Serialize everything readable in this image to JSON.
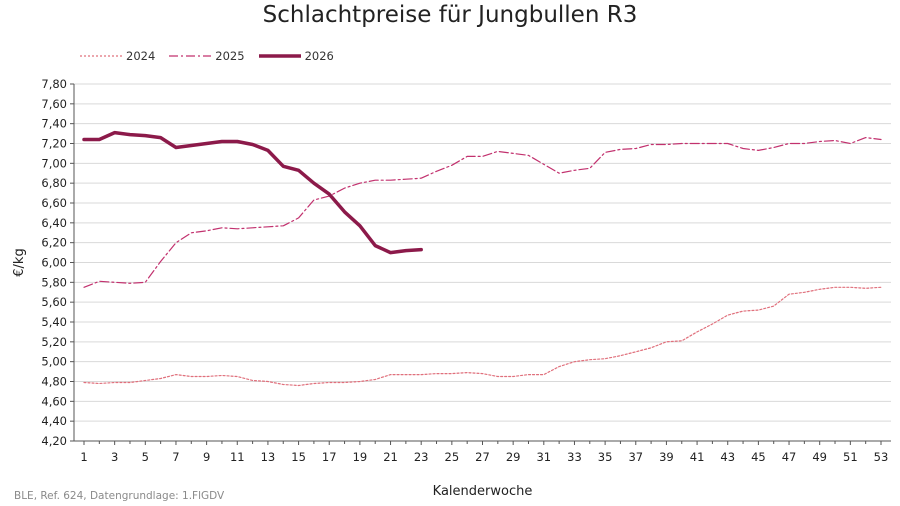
{
  "chart_data": {
    "type": "line",
    "title": "Schlachtpreise für Jungbullen R3",
    "xlabel": "Kalenderwoche",
    "ylabel": "€/kg",
    "xlim": [
      1,
      53
    ],
    "ylim": [
      4.2,
      7.8
    ],
    "yticks": [
      "4,20",
      "4,40",
      "4,60",
      "4,80",
      "5,00",
      "5,20",
      "5,40",
      "5,60",
      "5,80",
      "6,00",
      "6,20",
      "6,40",
      "6,60",
      "6,80",
      "7,00",
      "7,20",
      "7,40",
      "7,60",
      "7,80"
    ],
    "xticks": [
      "1",
      "3",
      "5",
      "7",
      "9",
      "11",
      "13",
      "15",
      "17",
      "19",
      "21",
      "23",
      "25",
      "27",
      "29",
      "31",
      "33",
      "35",
      "37",
      "39",
      "41",
      "43",
      "45",
      "47",
      "49",
      "51",
      "53"
    ],
    "grid": "horizontal",
    "legend_position": "top-left",
    "series": [
      {
        "name": "2024",
        "color": "#e0707c",
        "style": "dotted",
        "x": [
          1,
          2,
          3,
          4,
          5,
          6,
          7,
          8,
          9,
          10,
          11,
          12,
          13,
          14,
          15,
          16,
          17,
          18,
          19,
          20,
          21,
          22,
          23,
          24,
          25,
          26,
          27,
          28,
          29,
          30,
          31,
          32,
          33,
          34,
          35,
          36,
          37,
          38,
          39,
          40,
          41,
          42,
          43,
          44,
          45,
          46,
          47,
          48,
          49,
          50,
          51,
          52,
          53
        ],
        "values": [
          4.79,
          4.78,
          4.79,
          4.79,
          4.81,
          4.83,
          4.87,
          4.85,
          4.85,
          4.86,
          4.85,
          4.81,
          4.8,
          4.77,
          4.76,
          4.78,
          4.79,
          4.79,
          4.8,
          4.82,
          4.87,
          4.87,
          4.87,
          4.88,
          4.88,
          4.89,
          4.88,
          4.85,
          4.85,
          4.87,
          4.87,
          4.95,
          5.0,
          5.02,
          5.03,
          5.06,
          5.1,
          5.14,
          5.2,
          5.21,
          5.3,
          5.38,
          5.47,
          5.51,
          5.52,
          5.56,
          5.68,
          5.7,
          5.73,
          5.75,
          5.75,
          5.74,
          5.75
        ]
      },
      {
        "name": "2025",
        "color": "#c2316e",
        "style": "dashdot",
        "x": [
          1,
          2,
          3,
          4,
          5,
          6,
          7,
          8,
          9,
          10,
          11,
          12,
          13,
          14,
          15,
          16,
          17,
          18,
          19,
          20,
          21,
          22,
          23,
          24,
          25,
          26,
          27,
          28,
          29,
          30,
          31,
          32,
          33,
          34,
          35,
          36,
          37,
          38,
          39,
          40,
          41,
          42,
          43,
          44,
          45,
          46,
          47,
          48,
          49,
          50,
          51,
          52,
          53
        ],
        "values": [
          5.75,
          5.81,
          5.8,
          5.79,
          5.8,
          6.01,
          6.2,
          6.3,
          6.32,
          6.35,
          6.34,
          6.35,
          6.36,
          6.37,
          6.45,
          6.63,
          6.67,
          6.75,
          6.8,
          6.83,
          6.83,
          6.84,
          6.85,
          6.92,
          6.98,
          7.07,
          7.07,
          7.12,
          7.1,
          7.08,
          6.99,
          6.9,
          6.93,
          6.95,
          7.11,
          7.14,
          7.15,
          7.19,
          7.19,
          7.2,
          7.2,
          7.2,
          7.2,
          7.15,
          7.13,
          7.16,
          7.2,
          7.2,
          7.22,
          7.23,
          7.2,
          7.26,
          7.24
        ]
      },
      {
        "name": "2026",
        "color": "#8c1a4a",
        "style": "solid",
        "x": [
          1,
          2,
          3,
          4,
          5,
          6,
          7,
          8,
          9,
          10,
          11,
          12,
          13,
          14,
          15,
          16,
          17,
          18,
          19,
          20,
          21,
          22,
          23
        ],
        "values": [
          7.24,
          7.24,
          7.31,
          7.29,
          7.28,
          7.26,
          7.16,
          7.18,
          7.2,
          7.22,
          7.22,
          7.19,
          7.13,
          6.97,
          6.93,
          6.8,
          6.69,
          6.51,
          6.37,
          6.17,
          6.1,
          6.12,
          6.13
        ]
      }
    ]
  },
  "source": "BLE, Ref. 624, Datengrundlage: 1.FlGDV"
}
